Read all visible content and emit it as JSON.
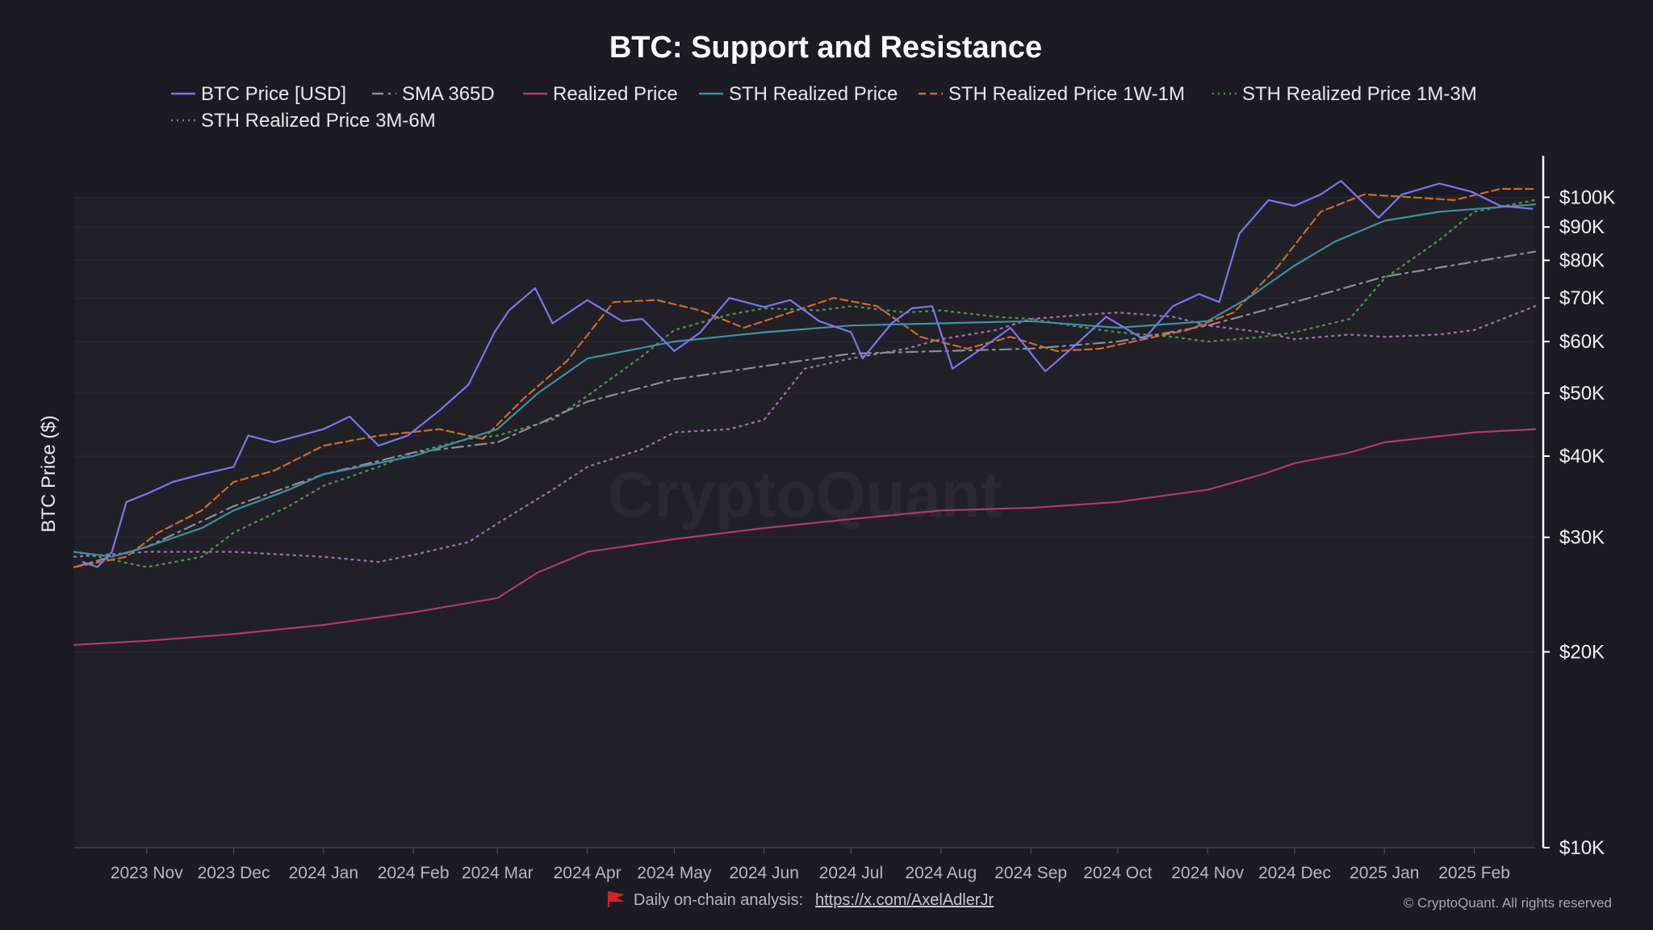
{
  "chart_data": {
    "type": "line",
    "title": "BTC: Support and Resistance",
    "ylabel": "BTC Price ($)",
    "yscale": "log",
    "ylim": [
      10000,
      110000
    ],
    "yticks": [
      {
        "value": 100000,
        "label": "$100K"
      },
      {
        "value": 90000,
        "label": "$90K"
      },
      {
        "value": 80000,
        "label": "$80K"
      },
      {
        "value": 70000,
        "label": "$70K"
      },
      {
        "value": 60000,
        "label": "$60K"
      },
      {
        "value": 50000,
        "label": "$50K"
      },
      {
        "value": 40000,
        "label": "$40K"
      },
      {
        "value": 30000,
        "label": "$30K"
      },
      {
        "value": 20000,
        "label": "$20K"
      },
      {
        "value": 10000,
        "label": "$10K"
      }
    ],
    "x_start": "2023-10-07",
    "x_end": "2025-02-22",
    "xticks": [
      {
        "date": "2023-11-01",
        "label": "2023 Nov"
      },
      {
        "date": "2023-12-01",
        "label": "2023 Dec"
      },
      {
        "date": "2024-01-01",
        "label": "2024 Jan"
      },
      {
        "date": "2024-02-01",
        "label": "2024 Feb"
      },
      {
        "date": "2024-03-01",
        "label": "2024 Mar"
      },
      {
        "date": "2024-04-01",
        "label": "2024 Apr"
      },
      {
        "date": "2024-05-01",
        "label": "2024 May"
      },
      {
        "date": "2024-06-01",
        "label": "2024 Jun"
      },
      {
        "date": "2024-07-01",
        "label": "2024 Jul"
      },
      {
        "date": "2024-08-01",
        "label": "2024 Aug"
      },
      {
        "date": "2024-09-01",
        "label": "2024 Sep"
      },
      {
        "date": "2024-10-01",
        "label": "2024 Oct"
      },
      {
        "date": "2024-11-01",
        "label": "2024 Nov"
      },
      {
        "date": "2024-12-01",
        "label": "2024 Dec"
      },
      {
        "date": "2025-01-01",
        "label": "2025 Jan"
      },
      {
        "date": "2025-02-01",
        "label": "2025 Feb"
      }
    ],
    "grid": true,
    "legend_position": "top",
    "series": [
      {
        "name": "BTC Price [USD]",
        "color": "#7b76f0",
        "dash": "solid",
        "x": [
          "2023-10-10",
          "2023-10-15",
          "2023-10-20",
          "2023-10-25",
          "2023-11-01",
          "2023-11-10",
          "2023-11-20",
          "2023-12-01",
          "2023-12-06",
          "2023-12-15",
          "2024-01-01",
          "2024-01-10",
          "2024-01-20",
          "2024-01-30",
          "2024-02-10",
          "2024-02-20",
          "2024-02-29",
          "2024-03-05",
          "2024-03-14",
          "2024-03-20",
          "2024-04-01",
          "2024-04-13",
          "2024-04-20",
          "2024-05-01",
          "2024-05-10",
          "2024-05-20",
          "2024-06-01",
          "2024-06-10",
          "2024-06-20",
          "2024-07-01",
          "2024-07-05",
          "2024-07-15",
          "2024-07-22",
          "2024-07-29",
          "2024-08-05",
          "2024-08-15",
          "2024-08-25",
          "2024-09-06",
          "2024-09-15",
          "2024-09-27",
          "2024-10-10",
          "2024-10-20",
          "2024-10-29",
          "2024-11-05",
          "2024-11-12",
          "2024-11-22",
          "2024-12-01",
          "2024-12-10",
          "2024-12-17",
          "2024-12-30",
          "2025-01-07",
          "2025-01-20",
          "2025-01-31",
          "2025-02-10",
          "2025-02-21"
        ],
        "values": [
          27500,
          27000,
          28500,
          34000,
          35000,
          36500,
          37500,
          38500,
          43000,
          42000,
          44000,
          46000,
          41500,
          43000,
          47000,
          51500,
          62000,
          67000,
          72500,
          64000,
          69500,
          64500,
          65000,
          58000,
          62000,
          70000,
          67800,
          69500,
          64500,
          62000,
          56500,
          64000,
          67500,
          68000,
          54500,
          58500,
          63000,
          54000,
          58500,
          65500,
          60500,
          68000,
          71000,
          69000,
          88000,
          99000,
          97000,
          101000,
          106000,
          93000,
          101000,
          105000,
          102000,
          97000,
          96000
        ]
      },
      {
        "name": "SMA 365D",
        "color": "#8e8e96",
        "dash": "dashdot",
        "x": [
          "2023-10-07",
          "2023-11-01",
          "2023-12-01",
          "2024-01-01",
          "2024-02-01",
          "2024-03-01",
          "2024-04-01",
          "2024-05-01",
          "2024-06-01",
          "2024-07-01",
          "2024-08-01",
          "2024-09-01",
          "2024-10-01",
          "2024-11-01",
          "2024-12-01",
          "2025-01-01",
          "2025-02-22"
        ],
        "values": [
          27000,
          29000,
          33500,
          37500,
          40500,
          42000,
          48500,
          52500,
          55000,
          57500,
          58000,
          58500,
          60000,
          63500,
          69000,
          75500,
          82500
        ]
      },
      {
        "name": "Realized Price",
        "color": "#b23a6a",
        "dash": "solid",
        "x": [
          "2023-10-07",
          "2023-11-01",
          "2023-12-01",
          "2024-01-01",
          "2024-02-01",
          "2024-03-01",
          "2024-03-15",
          "2024-04-01",
          "2024-05-01",
          "2024-06-01",
          "2024-07-01",
          "2024-08-01",
          "2024-09-01",
          "2024-10-01",
          "2024-11-01",
          "2024-11-20",
          "2024-12-01",
          "2024-12-20",
          "2025-01-01",
          "2025-02-01",
          "2025-02-22"
        ],
        "values": [
          20500,
          20800,
          21300,
          22000,
          23000,
          24200,
          26500,
          28500,
          29800,
          31000,
          32000,
          33000,
          33300,
          34000,
          35500,
          37500,
          39000,
          40500,
          42000,
          43500,
          44000
        ]
      },
      {
        "name": "STH Realized Price",
        "color": "#3f8fa4",
        "dash": "solid",
        "x": [
          "2023-10-07",
          "2023-10-20",
          "2023-11-01",
          "2023-11-20",
          "2023-12-01",
          "2023-12-20",
          "2024-01-01",
          "2024-02-01",
          "2024-03-01",
          "2024-03-15",
          "2024-04-01",
          "2024-05-01",
          "2024-06-01",
          "2024-07-01",
          "2024-08-01",
          "2024-09-01",
          "2024-10-01",
          "2024-11-01",
          "2024-11-15",
          "2024-12-01",
          "2024-12-15",
          "2025-01-01",
          "2025-01-20",
          "2025-02-22"
        ],
        "values": [
          28500,
          28000,
          29000,
          31000,
          33000,
          35500,
          37500,
          40000,
          44000,
          50000,
          56500,
          60000,
          62000,
          63500,
          64000,
          64500,
          63000,
          64500,
          70000,
          78500,
          85500,
          92000,
          95000,
          97500
        ]
      },
      {
        "name": "STH Realized Price 1W-1M",
        "color": "#d06a2a",
        "dash": "dashed",
        "x": [
          "2023-10-07",
          "2023-10-25",
          "2023-11-05",
          "2023-11-20",
          "2023-12-01",
          "2023-12-15",
          "2024-01-01",
          "2024-01-20",
          "2024-02-10",
          "2024-02-25",
          "2024-03-10",
          "2024-03-25",
          "2024-04-10",
          "2024-04-25",
          "2024-05-10",
          "2024-05-25",
          "2024-06-10",
          "2024-06-25",
          "2024-07-10",
          "2024-07-25",
          "2024-08-10",
          "2024-08-25",
          "2024-09-10",
          "2024-09-25",
          "2024-10-10",
          "2024-10-25",
          "2024-11-10",
          "2024-11-25",
          "2024-12-10",
          "2024-12-25",
          "2025-01-10",
          "2025-01-25",
          "2025-02-10",
          "2025-02-22"
        ],
        "values": [
          27000,
          28000,
          30500,
          33000,
          36500,
          38000,
          41500,
          43000,
          44000,
          42500,
          49000,
          56000,
          69000,
          69500,
          67000,
          63000,
          66500,
          70000,
          68000,
          61000,
          58500,
          61000,
          58000,
          58500,
          60500,
          62500,
          66500,
          78000,
          95000,
          101000,
          100000,
          99000,
          103000,
          103000
        ]
      },
      {
        "name": "STH Realized Price 1M-3M",
        "color": "#4f8f4f",
        "dash": "dotted",
        "x": [
          "2023-10-07",
          "2023-11-01",
          "2023-11-20",
          "2023-12-01",
          "2023-12-20",
          "2024-01-01",
          "2024-01-20",
          "2024-02-01",
          "2024-02-20",
          "2024-03-01",
          "2024-03-20",
          "2024-04-01",
          "2024-04-20",
          "2024-05-01",
          "2024-05-20",
          "2024-06-01",
          "2024-06-20",
          "2024-07-01",
          "2024-07-20",
          "2024-08-01",
          "2024-08-20",
          "2024-09-01",
          "2024-09-20",
          "2024-10-01",
          "2024-10-20",
          "2024-11-01",
          "2024-11-20",
          "2024-12-01",
          "2024-12-20",
          "2025-01-01",
          "2025-01-20",
          "2025-02-01",
          "2025-02-22"
        ],
        "values": [
          28500,
          27000,
          28000,
          30500,
          33500,
          36000,
          38500,
          40500,
          42500,
          43000,
          45500,
          49500,
          57000,
          62500,
          66000,
          67500,
          67000,
          68000,
          66500,
          67000,
          65500,
          65000,
          63000,
          62000,
          61000,
          60000,
          61000,
          62000,
          65000,
          75000,
          86000,
          95000,
          99000
        ]
      },
      {
        "name": "STH Realized Price 3M-6M",
        "color": "#9a6fa8",
        "dash": "dotted",
        "x": [
          "2023-10-07",
          "2023-11-01",
          "2023-12-01",
          "2024-01-01",
          "2024-01-20",
          "2024-02-01",
          "2024-02-20",
          "2024-03-01",
          "2024-03-20",
          "2024-04-01",
          "2024-04-20",
          "2024-05-01",
          "2024-05-20",
          "2024-06-01",
          "2024-06-15",
          "2024-07-01",
          "2024-07-20",
          "2024-08-01",
          "2024-08-20",
          "2024-09-01",
          "2024-09-20",
          "2024-10-01",
          "2024-10-20",
          "2024-11-01",
          "2024-11-20",
          "2024-12-01",
          "2024-12-20",
          "2025-01-01",
          "2025-01-20",
          "2025-02-01",
          "2025-02-22"
        ],
        "values": [
          28000,
          28500,
          28500,
          28000,
          27500,
          28200,
          29500,
          31500,
          35500,
          38500,
          41000,
          43500,
          44000,
          45500,
          54500,
          56500,
          58500,
          60500,
          62500,
          65000,
          66000,
          66500,
          65500,
          63500,
          62000,
          60500,
          61500,
          61000,
          61500,
          62500,
          68000
        ]
      }
    ]
  },
  "footer": {
    "text": "Daily on-chain analysis:",
    "link": "https://x.com/AxelAdlerJr",
    "copyright": "© CryptoQuant. All rights reserved"
  },
  "watermark": "CryptoQuant",
  "colors": {
    "background": "#1c1b22",
    "plot_background": "#202026",
    "grid": "#2c2b33",
    "flag": "#d0242b"
  }
}
